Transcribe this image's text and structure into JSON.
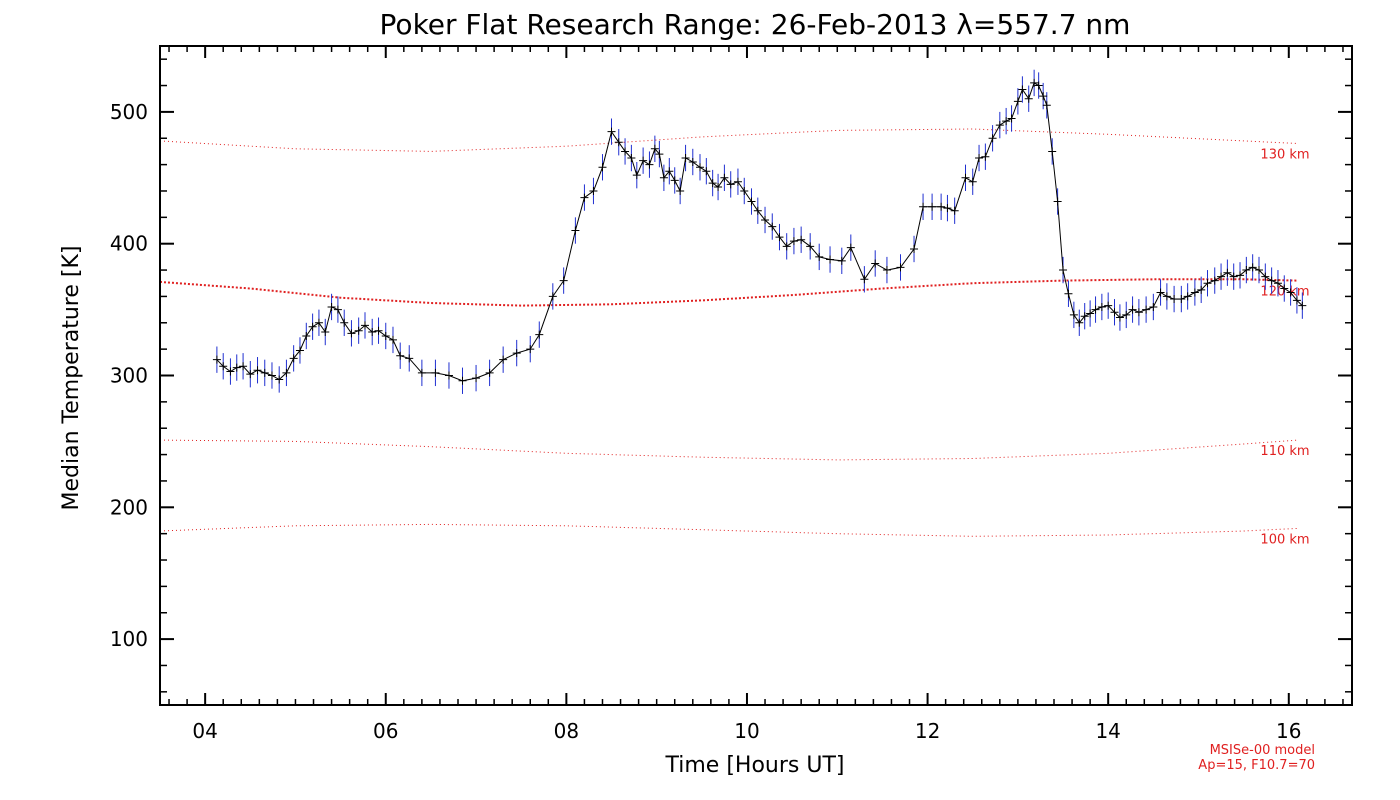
{
  "chart_data": {
    "type": "line",
    "title": "Poker Flat Research Range: 26-Feb-2013 λ=557.7 nm",
    "xlabel": "Time [Hours UT]",
    "ylabel": "Median Temperature [K]",
    "xlim": [
      3.5,
      16.7
    ],
    "ylim": [
      50,
      550
    ],
    "x_ticks": [
      4,
      6,
      8,
      10,
      12,
      14,
      16
    ],
    "x_tick_labels": [
      "04",
      "06",
      "08",
      "10",
      "12",
      "14",
      "16"
    ],
    "y_ticks": [
      100,
      200,
      300,
      400,
      500
    ],
    "y_tick_labels": [
      "100",
      "200",
      "300",
      "400",
      "500"
    ],
    "grid": false,
    "series": [
      {
        "color": "#000000",
        "errorbar_color": "#1f2fd0",
        "errorbar_halfwidth": 10,
        "points": [
          [
            4.13,
            312
          ],
          [
            4.2,
            307
          ],
          [
            4.28,
            303
          ],
          [
            4.35,
            306
          ],
          [
            4.42,
            307
          ],
          [
            4.5,
            301
          ],
          [
            4.58,
            304
          ],
          [
            4.66,
            302
          ],
          [
            4.74,
            300
          ],
          [
            4.82,
            297
          ],
          [
            4.9,
            302
          ],
          [
            4.98,
            313
          ],
          [
            5.05,
            319
          ],
          [
            5.12,
            330
          ],
          [
            5.19,
            337
          ],
          [
            5.26,
            340
          ],
          [
            5.33,
            333
          ],
          [
            5.4,
            352
          ],
          [
            5.47,
            350
          ],
          [
            5.54,
            340
          ],
          [
            5.62,
            332
          ],
          [
            5.7,
            334
          ],
          [
            5.77,
            338
          ],
          [
            5.85,
            333
          ],
          [
            5.92,
            334
          ],
          [
            6.0,
            330
          ],
          [
            6.08,
            327
          ],
          [
            6.16,
            315
          ],
          [
            6.26,
            313
          ],
          [
            6.4,
            302
          ],
          [
            6.55,
            302
          ],
          [
            6.7,
            300
          ],
          [
            6.85,
            296
          ],
          [
            7.0,
            298
          ],
          [
            7.15,
            302
          ],
          [
            7.3,
            312
          ],
          [
            7.45,
            317
          ],
          [
            7.6,
            320
          ],
          [
            7.7,
            331
          ],
          [
            7.85,
            360
          ],
          [
            7.97,
            372
          ],
          [
            8.1,
            410
          ],
          [
            8.2,
            435
          ],
          [
            8.3,
            440
          ],
          [
            8.4,
            458
          ],
          [
            8.5,
            485
          ],
          [
            8.58,
            477
          ],
          [
            8.65,
            470
          ],
          [
            8.72,
            465
          ],
          [
            8.78,
            452
          ],
          [
            8.85,
            463
          ],
          [
            8.92,
            460
          ],
          [
            8.98,
            472
          ],
          [
            9.03,
            468
          ],
          [
            9.08,
            450
          ],
          [
            9.14,
            455
          ],
          [
            9.2,
            448
          ],
          [
            9.26,
            440
          ],
          [
            9.32,
            465
          ],
          [
            9.4,
            462
          ],
          [
            9.48,
            458
          ],
          [
            9.55,
            455
          ],
          [
            9.62,
            446
          ],
          [
            9.68,
            443
          ],
          [
            9.75,
            450
          ],
          [
            9.82,
            445
          ],
          [
            9.9,
            447
          ],
          [
            9.97,
            440
          ],
          [
            10.05,
            432
          ],
          [
            10.12,
            425
          ],
          [
            10.2,
            418
          ],
          [
            10.28,
            413
          ],
          [
            10.36,
            405
          ],
          [
            10.44,
            398
          ],
          [
            10.52,
            402
          ],
          [
            10.6,
            403
          ],
          [
            10.7,
            398
          ],
          [
            10.8,
            390
          ],
          [
            10.92,
            388
          ],
          [
            11.05,
            387
          ],
          [
            11.15,
            397
          ],
          [
            11.3,
            373
          ],
          [
            11.42,
            385
          ],
          [
            11.55,
            380
          ],
          [
            11.7,
            382
          ],
          [
            11.85,
            396
          ],
          [
            11.95,
            428
          ],
          [
            12.05,
            428
          ],
          [
            12.15,
            428
          ],
          [
            12.22,
            427
          ],
          [
            12.3,
            425
          ],
          [
            12.42,
            450
          ],
          [
            12.5,
            447
          ],
          [
            12.57,
            465
          ],
          [
            12.64,
            466
          ],
          [
            12.72,
            480
          ],
          [
            12.8,
            490
          ],
          [
            12.87,
            493
          ],
          [
            12.93,
            495
          ],
          [
            13.0,
            508
          ],
          [
            13.05,
            517
          ],
          [
            13.12,
            510
          ],
          [
            13.18,
            522
          ],
          [
            13.23,
            520
          ],
          [
            13.28,
            512
          ],
          [
            13.32,
            505
          ],
          [
            13.38,
            470
          ],
          [
            13.44,
            432
          ],
          [
            13.5,
            380
          ],
          [
            13.56,
            362
          ],
          [
            13.62,
            346
          ],
          [
            13.68,
            340
          ],
          [
            13.74,
            345
          ],
          [
            13.8,
            347
          ],
          [
            13.86,
            350
          ],
          [
            13.93,
            352
          ],
          [
            14.0,
            353
          ],
          [
            14.07,
            348
          ],
          [
            14.13,
            344
          ],
          [
            14.2,
            346
          ],
          [
            14.27,
            350
          ],
          [
            14.34,
            348
          ],
          [
            14.42,
            350
          ],
          [
            14.5,
            352
          ],
          [
            14.58,
            363
          ],
          [
            14.65,
            360
          ],
          [
            14.73,
            358
          ],
          [
            14.81,
            358
          ],
          [
            14.88,
            360
          ],
          [
            14.96,
            363
          ],
          [
            15.03,
            365
          ],
          [
            15.1,
            370
          ],
          [
            15.18,
            372
          ],
          [
            15.25,
            375
          ],
          [
            15.32,
            378
          ],
          [
            15.39,
            375
          ],
          [
            15.46,
            376
          ],
          [
            15.53,
            380
          ],
          [
            15.6,
            382
          ],
          [
            15.67,
            380
          ],
          [
            15.74,
            375
          ],
          [
            15.81,
            372
          ],
          [
            15.88,
            370
          ],
          [
            15.95,
            366
          ],
          [
            16.02,
            363
          ],
          [
            16.09,
            357
          ],
          [
            16.15,
            353
          ]
        ]
      }
    ],
    "model_curves": [
      {
        "label": "130 km",
        "color": "#e02020",
        "points": [
          [
            3.5,
            478
          ],
          [
            5.0,
            472
          ],
          [
            6.5,
            470
          ],
          [
            8.0,
            474
          ],
          [
            9.5,
            481
          ],
          [
            11.0,
            486
          ],
          [
            12.5,
            487
          ],
          [
            14.0,
            483
          ],
          [
            15.5,
            478
          ],
          [
            16.1,
            476
          ]
        ]
      },
      {
        "label": "120 km",
        "color": "#e02020",
        "points": [
          [
            3.5,
            371
          ],
          [
            4.5,
            366
          ],
          [
            5.5,
            359
          ],
          [
            6.5,
            355
          ],
          [
            7.5,
            353
          ],
          [
            8.5,
            354
          ],
          [
            9.5,
            357
          ],
          [
            10.5,
            361
          ],
          [
            11.5,
            366
          ],
          [
            12.5,
            370
          ],
          [
            13.5,
            372
          ],
          [
            14.5,
            373
          ],
          [
            15.5,
            373
          ],
          [
            16.1,
            372
          ]
        ]
      },
      {
        "label": "110 km",
        "color": "#e02020",
        "points": [
          [
            3.5,
            251
          ],
          [
            5.0,
            250
          ],
          [
            6.5,
            246
          ],
          [
            8.0,
            241
          ],
          [
            9.5,
            238
          ],
          [
            11.0,
            236
          ],
          [
            12.5,
            237
          ],
          [
            14.0,
            241
          ],
          [
            15.5,
            248
          ],
          [
            16.1,
            251
          ]
        ]
      },
      {
        "label": "100 km",
        "color": "#e02020",
        "points": [
          [
            3.5,
            182
          ],
          [
            5.0,
            186
          ],
          [
            6.5,
            187
          ],
          [
            8.0,
            186
          ],
          [
            9.5,
            183
          ],
          [
            11.0,
            180
          ],
          [
            12.5,
            178
          ],
          [
            14.0,
            179
          ],
          [
            15.5,
            182
          ],
          [
            16.1,
            184
          ]
        ]
      }
    ],
    "notes": [
      "MSISe-00 model",
      "Ap=15, F10.7=70"
    ],
    "notes_color": "#e02020"
  }
}
